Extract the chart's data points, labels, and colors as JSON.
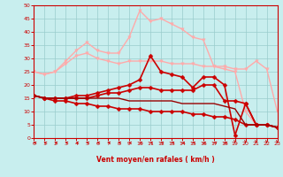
{
  "xlabel": "Vent moyen/en rafales ( km/h )",
  "xlim": [
    0,
    23
  ],
  "ylim": [
    0,
    50
  ],
  "yticks": [
    0,
    5,
    10,
    15,
    20,
    25,
    30,
    35,
    40,
    45,
    50
  ],
  "xticks": [
    0,
    1,
    2,
    3,
    4,
    5,
    6,
    7,
    8,
    9,
    10,
    11,
    12,
    13,
    14,
    15,
    16,
    17,
    18,
    19,
    20,
    21,
    22,
    23
  ],
  "background_color": "#c8eeee",
  "grid_color": "#99cccc",
  "series": [
    {
      "x": [
        0,
        1,
        2,
        3,
        4,
        5,
        6,
        7,
        8,
        9,
        10,
        11,
        12,
        13,
        14,
        15,
        16,
        17,
        18,
        19,
        20,
        21,
        22,
        23
      ],
      "y": [
        25,
        24,
        25,
        28,
        31,
        32,
        30,
        29,
        28,
        29,
        29,
        29,
        29,
        28,
        28,
        28,
        27,
        27,
        27,
        26,
        26,
        29,
        26,
        10
      ],
      "color": "#ffaaaa",
      "lw": 1.0,
      "marker": "v",
      "ms": 2.5
    },
    {
      "x": [
        0,
        1,
        2,
        3,
        4,
        5,
        6,
        7,
        8,
        9,
        10,
        11,
        12,
        13,
        14,
        15,
        16,
        17,
        18,
        19,
        20,
        21,
        22,
        23
      ],
      "y": [
        25,
        24,
        25,
        29,
        33,
        36,
        33,
        32,
        32,
        38,
        48,
        44,
        45,
        43,
        41,
        38,
        37,
        27,
        26,
        25,
        10,
        5,
        5,
        4
      ],
      "color": "#ffaaaa",
      "lw": 1.0,
      "marker": "v",
      "ms": 2.5
    },
    {
      "x": [
        0,
        1,
        2,
        3,
        4,
        5,
        6,
        7,
        8,
        9,
        10,
        11,
        12,
        13,
        14,
        15,
        16,
        17,
        18,
        19,
        20,
        21,
        22,
        23
      ],
      "y": [
        16,
        15,
        15,
        15,
        16,
        16,
        17,
        18,
        19,
        20,
        22,
        31,
        25,
        24,
        23,
        19,
        23,
        23,
        20,
        1,
        13,
        5,
        5,
        4
      ],
      "color": "#cc0000",
      "lw": 1.2,
      "marker": "D",
      "ms": 2.5
    },
    {
      "x": [
        0,
        1,
        2,
        3,
        4,
        5,
        6,
        7,
        8,
        9,
        10,
        11,
        12,
        13,
        14,
        15,
        16,
        17,
        18,
        19,
        20,
        21,
        22,
        23
      ],
      "y": [
        16,
        15,
        15,
        15,
        15,
        15,
        16,
        17,
        17,
        18,
        19,
        19,
        18,
        18,
        18,
        18,
        20,
        20,
        14,
        14,
        13,
        5,
        5,
        4
      ],
      "color": "#cc0000",
      "lw": 1.2,
      "marker": "D",
      "ms": 2.5
    },
    {
      "x": [
        0,
        1,
        2,
        3,
        4,
        5,
        6,
        7,
        8,
        9,
        10,
        11,
        12,
        13,
        14,
        15,
        16,
        17,
        18,
        19,
        20,
        21,
        22,
        23
      ],
      "y": [
        16,
        15,
        14,
        14,
        13,
        13,
        12,
        12,
        11,
        11,
        11,
        10,
        10,
        10,
        10,
        9,
        9,
        8,
        8,
        7,
        5,
        5,
        5,
        4
      ],
      "color": "#cc0000",
      "lw": 1.2,
      "marker": "D",
      "ms": 2.5
    },
    {
      "x": [
        0,
        1,
        2,
        3,
        4,
        5,
        6,
        7,
        8,
        9,
        10,
        11,
        12,
        13,
        14,
        15,
        16,
        17,
        18,
        19,
        20,
        21,
        22,
        23
      ],
      "y": [
        16,
        15,
        15,
        15,
        15,
        15,
        15,
        15,
        15,
        14,
        14,
        14,
        14,
        14,
        13,
        13,
        13,
        13,
        12,
        11,
        5,
        5,
        5,
        4
      ],
      "color": "#990000",
      "lw": 1.0,
      "marker": null,
      "ms": 0
    }
  ],
  "wind_arrow_color": "#cc0000",
  "arrow_xs_left": [
    0,
    1,
    2,
    3,
    4,
    5,
    6,
    7,
    8,
    9,
    10,
    11,
    12,
    13,
    14,
    15,
    16,
    17,
    18
  ],
  "arrow_xs_down": [
    19,
    20,
    21,
    22,
    23
  ]
}
